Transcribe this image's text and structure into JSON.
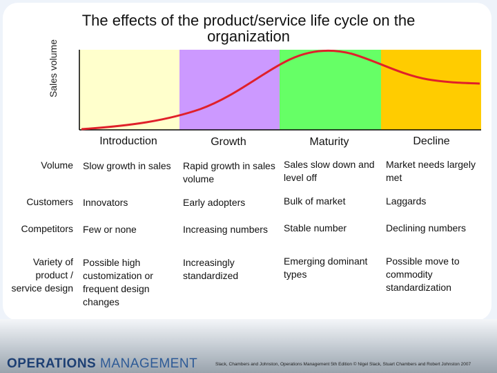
{
  "title": "The effects of the product/service life cycle on the organization",
  "y_axis_label": "Sales volume",
  "stages": [
    "Introduction",
    "Growth",
    "Maturity",
    "Decline"
  ],
  "rows": [
    {
      "label": "Volume",
      "cells": [
        "Slow growth in sales",
        "Rapid growth in sales volume",
        "Sales slow down and level off",
        "Market needs largely met"
      ]
    },
    {
      "label": "Customers",
      "cells": [
        "Innovators",
        "Early adopters",
        "Bulk of market",
        "Laggards"
      ]
    },
    {
      "label": "Competitors",
      "cells": [
        "Few or none",
        "Increasing numbers",
        "Stable number",
        "Declining numbers"
      ]
    },
    {
      "label": "Variety of product / service design",
      "cells": [
        "Possible high customization or frequent design changes",
        "Increasingly standardized",
        "Emerging dominant types",
        "Possible move to commodity standardization"
      ]
    }
  ],
  "footer": {
    "brand_bold": "OPERATIONS",
    "brand_light": "MANAGEMENT",
    "citation": "Slack, Chambers and Johnston, Operations Management 5th Edition © Nigel Slack, Stuart Chambers and Robert Johnston 2007"
  }
}
